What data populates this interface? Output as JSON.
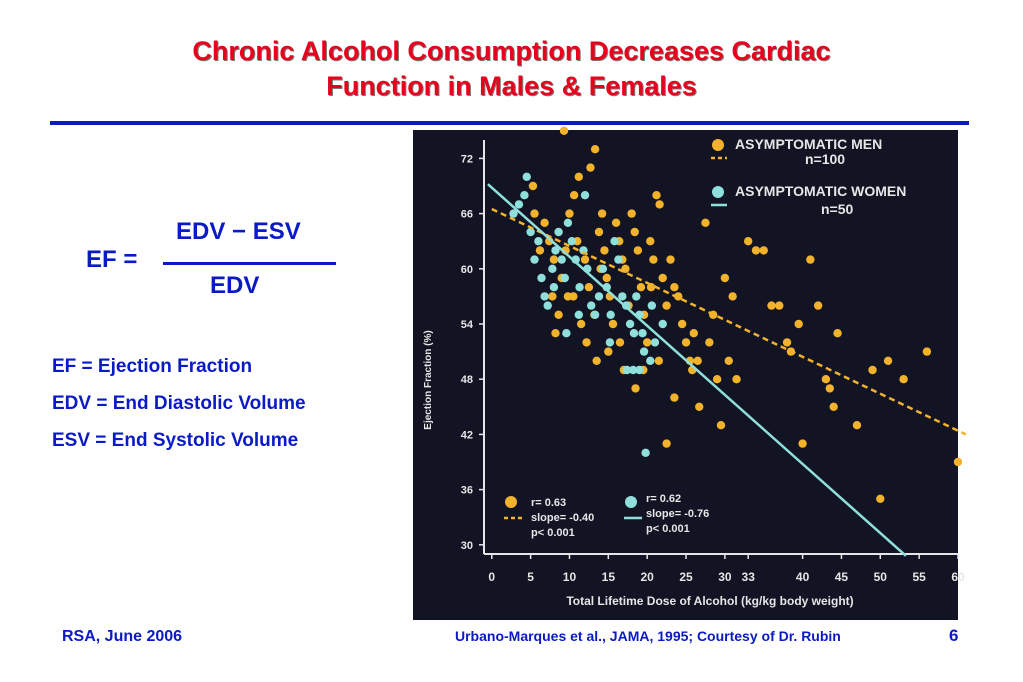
{
  "slide": {
    "title_line1": "Chronic Alcohol Consumption Decreases Cardiac",
    "title_line2": "Function in Males &  Females",
    "formula": {
      "lhs": "EF =",
      "numerator": "EDV − ESV",
      "denominator": "EDV"
    },
    "definitions": [
      "EF = Ejection Fraction",
      "EDV = End Diastolic Volume",
      "ESV = End Systolic Volume"
    ],
    "footer_left": "RSA, June 2006",
    "footer_right": "Urbano-Marques et al., JAMA, 1995; Courtesy of Dr. Rubin",
    "page_number": "6"
  },
  "colors": {
    "title": "#e8001c",
    "text": "#0a1ac4",
    "rule": "#0a1ac4",
    "chart_background": "#121424",
    "men": "#f2b22b",
    "women": "#8fe0dc",
    "axis": "#e6e6e6"
  },
  "chart_data": {
    "type": "scatter",
    "xlabel": "Total Lifetime Dose of Alcohol (kg/kg body weight)",
    "ylabel": "Ejection Fraction (%)",
    "x_ticks": [
      0,
      5,
      10,
      15,
      20,
      25,
      30,
      33,
      40,
      45,
      50,
      55,
      60
    ],
    "y_ticks": [
      30,
      36,
      42,
      48,
      54,
      60,
      66,
      72
    ],
    "xlim": [
      -1,
      60
    ],
    "ylim": [
      29,
      74
    ],
    "grid": false,
    "legend_position": "top-right",
    "series": [
      {
        "name": "ASYMPTOMATIC  MEN",
        "note": "n=100",
        "color": "#f2b22b",
        "fit": {
          "x0": 0,
          "y0": 66.5,
          "x1": 61,
          "y1": 42
        },
        "stats": {
          "r": "r= 0.63",
          "slope": "slope= -0.40",
          "p": "p< 0.001"
        },
        "points": [
          [
            5.3,
            69
          ],
          [
            5.5,
            66
          ],
          [
            9.3,
            75
          ],
          [
            12.7,
            71
          ],
          [
            13.3,
            73
          ],
          [
            6.8,
            65
          ],
          [
            7.4,
            63
          ],
          [
            8.0,
            61
          ],
          [
            7.8,
            57
          ],
          [
            8.2,
            53
          ],
          [
            9.0,
            59
          ],
          [
            9.5,
            62
          ],
          [
            10.0,
            66
          ],
          [
            10.6,
            68
          ],
          [
            11.2,
            70
          ],
          [
            11.0,
            63
          ],
          [
            12.0,
            61
          ],
          [
            12.5,
            58
          ],
          [
            13.2,
            55
          ],
          [
            13.8,
            64
          ],
          [
            14.2,
            66
          ],
          [
            14.5,
            62
          ],
          [
            14.8,
            59
          ],
          [
            15.2,
            57
          ],
          [
            15.6,
            54
          ],
          [
            16.0,
            65
          ],
          [
            16.4,
            63
          ],
          [
            16.8,
            61
          ],
          [
            17.2,
            60
          ],
          [
            17.6,
            56
          ],
          [
            18.0,
            66
          ],
          [
            18.4,
            64
          ],
          [
            18.8,
            62
          ],
          [
            19.2,
            58
          ],
          [
            19.6,
            55
          ],
          [
            20.0,
            52
          ],
          [
            20.4,
            63
          ],
          [
            20.8,
            61
          ],
          [
            21.2,
            68
          ],
          [
            21.6,
            67
          ],
          [
            22.0,
            59
          ],
          [
            22.5,
            56
          ],
          [
            23.0,
            61
          ],
          [
            23.5,
            58
          ],
          [
            24.0,
            57
          ],
          [
            24.5,
            54
          ],
          [
            25.0,
            52
          ],
          [
            25.5,
            50
          ],
          [
            26.0,
            53
          ],
          [
            26.5,
            50
          ],
          [
            26.7,
            45
          ],
          [
            28.0,
            52
          ],
          [
            28.5,
            55
          ],
          [
            29.0,
            48
          ],
          [
            30.0,
            59
          ],
          [
            27.5,
            65
          ],
          [
            30.5,
            50
          ],
          [
            31.5,
            48
          ],
          [
            33.0,
            63
          ],
          [
            34.0,
            62
          ],
          [
            35.0,
            62
          ],
          [
            36.0,
            56
          ],
          [
            37.0,
            56
          ],
          [
            38.0,
            52
          ],
          [
            38.5,
            51
          ],
          [
            39.5,
            54
          ],
          [
            40.0,
            41
          ],
          [
            41.0,
            61
          ],
          [
            42.0,
            56
          ],
          [
            43.0,
            48
          ],
          [
            43.5,
            47
          ],
          [
            44.5,
            53
          ],
          [
            44.0,
            45
          ],
          [
            47.0,
            43
          ],
          [
            49.0,
            49
          ],
          [
            50.0,
            35
          ],
          [
            51.0,
            50
          ],
          [
            53.0,
            48
          ],
          [
            56.0,
            51
          ],
          [
            60.0,
            39
          ],
          [
            16.5,
            52
          ],
          [
            13.5,
            50
          ],
          [
            22.5,
            41
          ],
          [
            18.5,
            47
          ],
          [
            9.8,
            57
          ],
          [
            15.0,
            51
          ],
          [
            19.5,
            49
          ],
          [
            21.5,
            50
          ],
          [
            17.0,
            49
          ],
          [
            11.5,
            54
          ],
          [
            23.5,
            46
          ],
          [
            29.5,
            43
          ],
          [
            10.5,
            57
          ],
          [
            20.5,
            58
          ],
          [
            14.0,
            60
          ],
          [
            8.6,
            55
          ],
          [
            6.2,
            62
          ],
          [
            12.2,
            52
          ],
          [
            25.8,
            49
          ],
          [
            31.0,
            57
          ]
        ]
      },
      {
        "name": "ASYMPTOMATIC WOMEN",
        "note": "n=50",
        "color": "#8fe0dc",
        "fit": {
          "x0": -0.5,
          "y0": 69.2,
          "x1": 53.3,
          "y1": 28.8
        },
        "stats": {
          "r": "r= 0.62",
          "slope": "slope= -0.76",
          "p": "p< 0.001"
        },
        "points": [
          [
            2.8,
            66
          ],
          [
            3.5,
            67
          ],
          [
            4.2,
            68
          ],
          [
            4.5,
            70
          ],
          [
            5.0,
            64
          ],
          [
            5.5,
            61
          ],
          [
            6.0,
            63
          ],
          [
            6.4,
            59
          ],
          [
            6.8,
            57
          ],
          [
            7.2,
            56
          ],
          [
            7.8,
            60
          ],
          [
            8.2,
            62
          ],
          [
            8.6,
            64
          ],
          [
            9.0,
            61
          ],
          [
            9.4,
            59
          ],
          [
            9.8,
            65
          ],
          [
            10.3,
            63
          ],
          [
            10.8,
            61
          ],
          [
            11.3,
            58
          ],
          [
            11.8,
            62
          ],
          [
            12.3,
            60
          ],
          [
            12.8,
            56
          ],
          [
            13.3,
            55
          ],
          [
            13.8,
            57
          ],
          [
            14.3,
            60
          ],
          [
            14.8,
            58
          ],
          [
            15.3,
            55
          ],
          [
            15.8,
            63
          ],
          [
            16.3,
            61
          ],
          [
            16.8,
            57
          ],
          [
            17.3,
            56
          ],
          [
            17.8,
            54
          ],
          [
            18.3,
            53
          ],
          [
            18.6,
            57
          ],
          [
            19.0,
            55
          ],
          [
            19.4,
            53
          ],
          [
            17.4,
            49
          ],
          [
            18.2,
            49
          ],
          [
            19.0,
            49
          ],
          [
            19.6,
            51
          ],
          [
            20.4,
            50
          ],
          [
            19.8,
            40
          ],
          [
            21.0,
            52
          ],
          [
            22.0,
            54
          ],
          [
            12.0,
            68
          ],
          [
            9.6,
            53
          ],
          [
            8.0,
            58
          ],
          [
            11.2,
            55
          ],
          [
            15.2,
            52
          ],
          [
            20.6,
            56
          ]
        ]
      }
    ]
  }
}
